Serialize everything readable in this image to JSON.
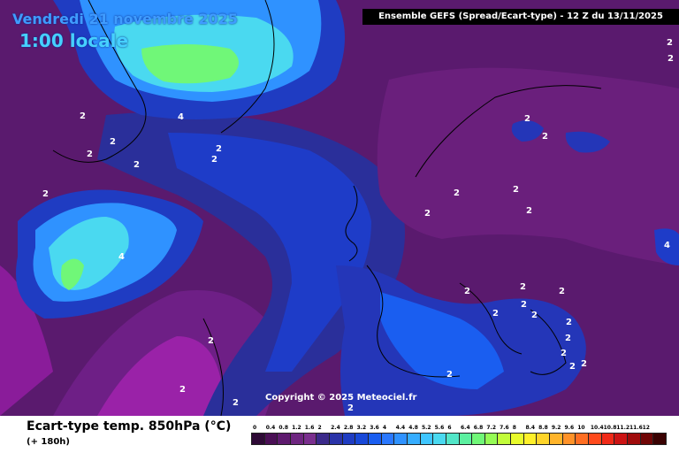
{
  "map": {
    "date_text": "Vendredi 21 novembre 2025",
    "time_text": "1:00 locale",
    "run_info": "Ensemble GEFS  (Spread/Ecart-type) - 12 Z du 13/11/2025",
    "copyright": "Copyright © 2025 Meteociel.fr",
    "contour_labels": [
      "2",
      "2",
      "4",
      "2",
      "2",
      "2",
      "2",
      "2",
      "2",
      "2",
      "4",
      "2",
      "2",
      "2",
      "2",
      "2",
      "2",
      "2",
      "2",
      "2",
      "2",
      "2",
      "2",
      "2",
      "2",
      "2",
      "2",
      "2",
      "2",
      "2",
      "2",
      "2",
      "2",
      "4"
    ]
  },
  "footer": {
    "parameter_title": "Ecart-type temp. 850hPa (°C)",
    "lead_time": "(+ 180h)"
  },
  "legend": {
    "labels": [
      "0",
      "0.4",
      "0.8",
      "1.2",
      "1.6",
      "2",
      "2.4",
      "2.8",
      "3.2",
      "3.6",
      "4",
      "4.4",
      "4.8",
      "5.2",
      "5.6",
      "6",
      "6.4",
      "6.8",
      "7.2",
      "7.6",
      "8",
      "8.4",
      "8.8",
      "9.2",
      "9.6",
      "10",
      "10.4",
      "10.8",
      "11.2",
      "11.6",
      "12"
    ],
    "colors": [
      "#2e0a36",
      "#4a0f55",
      "#5e1a6e",
      "#6e2680",
      "#7a2f8e",
      "#3b2a8a",
      "#2a33a8",
      "#1f3cc2",
      "#1848d8",
      "#1a5ef0",
      "#2a78ff",
      "#2f92ff",
      "#36adff",
      "#3fc6ff",
      "#4ad9f0",
      "#52e6c8",
      "#5cf0a0",
      "#70f778",
      "#95fb55",
      "#c2fc3a",
      "#e8fb2c",
      "#fff02a",
      "#ffd52a",
      "#ffb42a",
      "#ff9228",
      "#ff6e22",
      "#ff4a1c",
      "#f02a18",
      "#cc1414",
      "#a00c0c",
      "#700606",
      "#3a0202"
    ]
  }
}
